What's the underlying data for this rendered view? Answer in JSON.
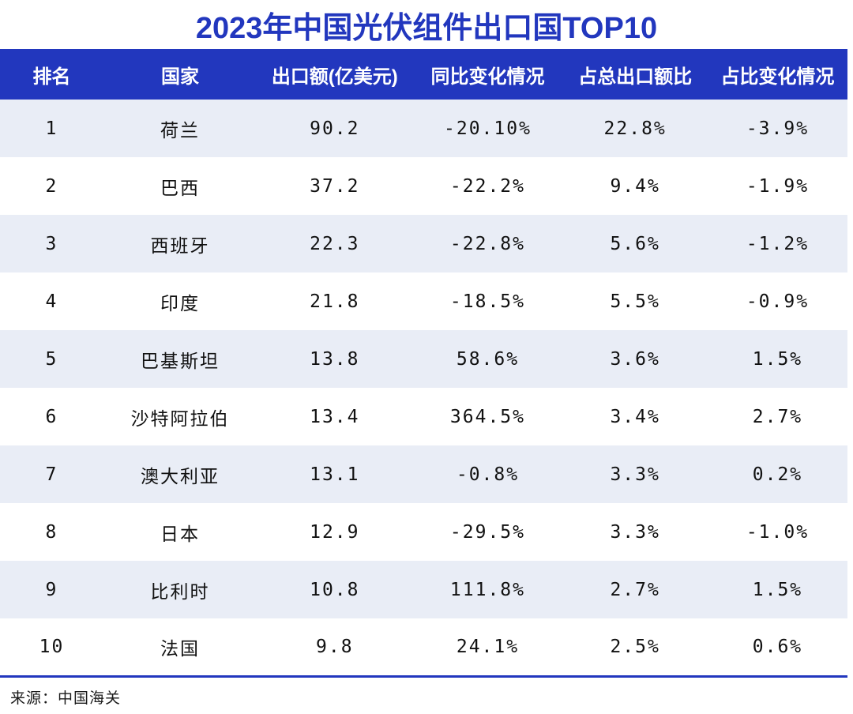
{
  "page_title": "2023年中国光伏组件出口国TOP10",
  "source_note": "来源：中国海关",
  "colors": {
    "accent": "#2237be",
    "row_alt": "#e9edf6",
    "header_text": "#ffffff",
    "body_text": "#111111"
  },
  "chart_data": {
    "type": "table",
    "title": "2023年中国光伏组件出口国TOP10",
    "source": "来源：中国海关",
    "columns": [
      "排名",
      "国家",
      "出口额(亿美元)",
      "同比变化情况",
      "占总出口额比",
      "占比变化情况"
    ],
    "column_keys": [
      "rank",
      "country",
      "export_value",
      "yoy_change",
      "share",
      "share_change"
    ],
    "column_widths_pct": [
      12.2,
      18.1,
      18.4,
      17.7,
      17.1,
      16.5
    ],
    "rows": [
      {
        "rank": "1",
        "country": "荷兰",
        "export_value": "90.2",
        "yoy_change": "-20.10%",
        "share": "22.8%",
        "share_change": "-3.9%"
      },
      {
        "rank": "2",
        "country": "巴西",
        "export_value": "37.2",
        "yoy_change": "-22.2%",
        "share": "9.4%",
        "share_change": "-1.9%"
      },
      {
        "rank": "3",
        "country": "西班牙",
        "export_value": "22.3",
        "yoy_change": "-22.8%",
        "share": "5.6%",
        "share_change": "-1.2%"
      },
      {
        "rank": "4",
        "country": "印度",
        "export_value": "21.8",
        "yoy_change": "-18.5%",
        "share": "5.5%",
        "share_change": "-0.9%"
      },
      {
        "rank": "5",
        "country": "巴基斯坦",
        "export_value": "13.8",
        "yoy_change": "58.6%",
        "share": "3.6%",
        "share_change": "1.5%"
      },
      {
        "rank": "6",
        "country": "沙特阿拉伯",
        "export_value": "13.4",
        "yoy_change": "364.5%",
        "share": "3.4%",
        "share_change": "2.7%"
      },
      {
        "rank": "7",
        "country": "澳大利亚",
        "export_value": "13.1",
        "yoy_change": "-0.8%",
        "share": "3.3%",
        "share_change": "0.2%"
      },
      {
        "rank": "8",
        "country": "日本",
        "export_value": "12.9",
        "yoy_change": "-29.5%",
        "share": "3.3%",
        "share_change": "-1.0%"
      },
      {
        "rank": "9",
        "country": "比利时",
        "export_value": "10.8",
        "yoy_change": "111.8%",
        "share": "2.7%",
        "share_change": "1.5%"
      },
      {
        "rank": "10",
        "country": "法国",
        "export_value": "9.8",
        "yoy_change": "24.1%",
        "share": "2.5%",
        "share_change": "0.6%"
      }
    ]
  }
}
